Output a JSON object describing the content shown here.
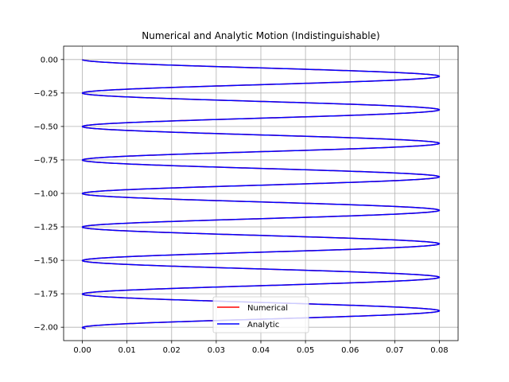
{
  "chart_data": {
    "type": "line",
    "title": "Numerical and Analytic Motion (Indistinguishable)",
    "xlabel": "",
    "ylabel": "",
    "xlim": [
      -0.0042,
      0.0842
    ],
    "ylim": [
      -2.1,
      0.1
    ],
    "x_ticks": [
      0.0,
      0.01,
      0.02,
      0.03,
      0.04,
      0.05,
      0.06,
      0.07,
      0.08
    ],
    "x_tick_labels": [
      "0.00",
      "0.01",
      "0.02",
      "0.03",
      "0.04",
      "0.05",
      "0.06",
      "0.07",
      "0.08"
    ],
    "y_ticks": [
      0.0,
      -0.25,
      -0.5,
      -0.75,
      -1.0,
      -1.25,
      -1.5,
      -1.75,
      -2.0
    ],
    "y_tick_labels": [
      "0.00",
      "−0.25",
      "−0.50",
      "−0.75",
      "−1.00",
      "−1.25",
      "−1.50",
      "−1.75",
      "−2.00"
    ],
    "grid": true,
    "legend_position": "lower-center",
    "curve": {
      "x_amplitude": 0.04,
      "x_offset": 0.04,
      "y_start": 0.0,
      "y_end": -2.01,
      "loops": 8,
      "end_phase": 0.03
    },
    "series": [
      {
        "name": "Numerical",
        "color": "#ff0000"
      },
      {
        "name": "Analytic",
        "color": "#0000ff"
      }
    ]
  }
}
